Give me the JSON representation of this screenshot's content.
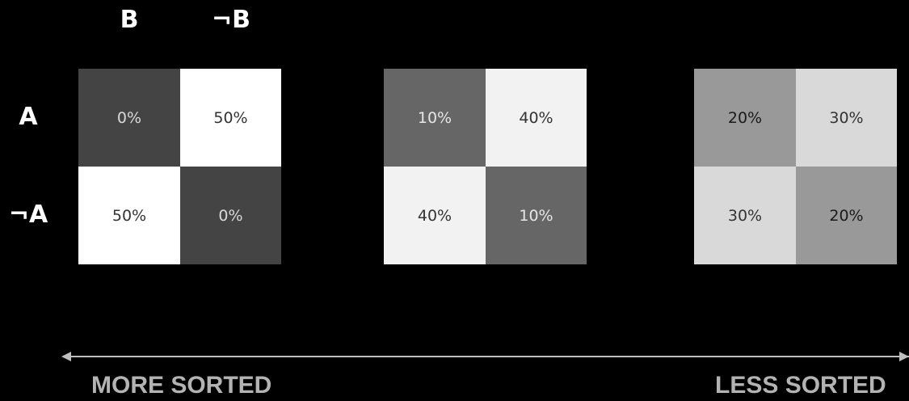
{
  "column_headers": [
    "B",
    "¬B"
  ],
  "row_headers": [
    "A",
    "¬A"
  ],
  "matrices": [
    {
      "cells": [
        [
          {
            "value": "0%",
            "bg": "#444444",
            "fg": "#d9d9d9"
          },
          {
            "value": "50%",
            "bg": "#ffffff",
            "fg": "#333333"
          }
        ],
        [
          {
            "value": "50%",
            "bg": "#ffffff",
            "fg": "#333333"
          },
          {
            "value": "0%",
            "bg": "#444444",
            "fg": "#d9d9d9"
          }
        ]
      ]
    },
    {
      "cells": [
        [
          {
            "value": "10%",
            "bg": "#666666",
            "fg": "#e6e6e6"
          },
          {
            "value": "40%",
            "bg": "#f2f2f2",
            "fg": "#333333"
          }
        ],
        [
          {
            "value": "40%",
            "bg": "#f2f2f2",
            "fg": "#333333"
          },
          {
            "value": "10%",
            "bg": "#666666",
            "fg": "#e6e6e6"
          }
        ]
      ]
    },
    {
      "cells": [
        [
          {
            "value": "20%",
            "bg": "#999999",
            "fg": "#1a1a1a"
          },
          {
            "value": "30%",
            "bg": "#d9d9d9",
            "fg": "#333333"
          }
        ],
        [
          {
            "value": "30%",
            "bg": "#d9d9d9",
            "fg": "#333333"
          },
          {
            "value": "20%",
            "bg": "#999999",
            "fg": "#1a1a1a"
          }
        ]
      ]
    }
  ],
  "axis": {
    "left_label": "MORE SORTED",
    "right_label": "LESS SORTED",
    "color": "#bfbfbf"
  }
}
